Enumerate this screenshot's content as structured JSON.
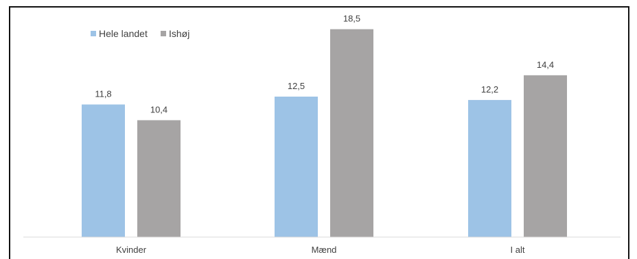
{
  "chart_data": {
    "type": "bar",
    "title": "",
    "xlabel": "",
    "ylabel": "",
    "categories": [
      "Kvinder",
      "Mænd",
      "I alt"
    ],
    "series": [
      {
        "name": "Hele landet",
        "color": "#9dc3e6",
        "values": [
          11.8,
          12.5,
          12.2
        ],
        "labels": [
          "11,8",
          "12,5",
          "12,2"
        ]
      },
      {
        "name": "Ishøj",
        "color": "#a6a4a4",
        "values": [
          10.4,
          18.5,
          14.4
        ],
        "labels": [
          "10,4",
          "18,5",
          "14,4"
        ]
      }
    ],
    "ylim": [
      0,
      20
    ],
    "grid": false,
    "y_axis_visible": false,
    "legend_position": "top-left",
    "data_labels": true
  }
}
